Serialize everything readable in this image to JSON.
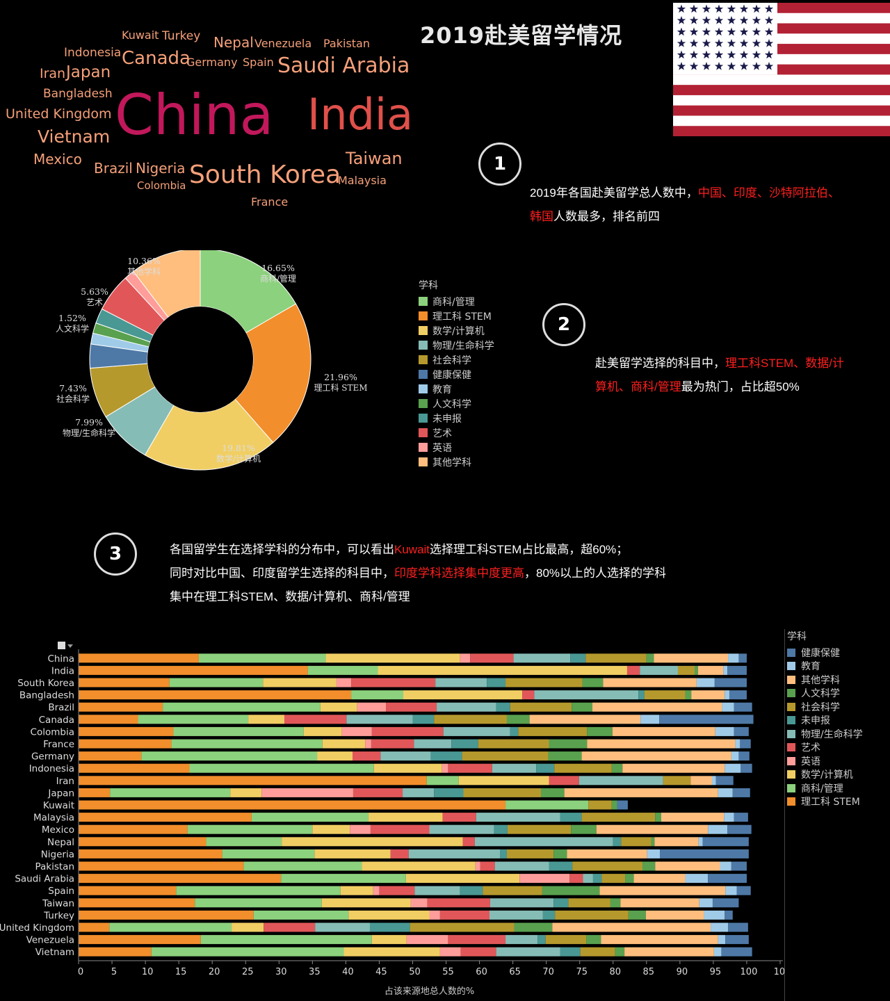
{
  "title": "2019赴美留学情况",
  "colors": {
    "理工科 STEM": "#f28e2b",
    "商科/管理": "#8cd17d",
    "数学/计算机": "#f1ce63",
    "物理/生命科学": "#86bcb6",
    "社会科学": "#b6992d",
    "健康保健": "#4e79a7",
    "教育": "#a0cbe8",
    "人文科学": "#59a14f",
    "未申报": "#499894",
    "艺术": "#e15759",
    "英语": "#ff9d9a",
    "其他学科": "#ffbe7d"
  },
  "notes": [
    {
      "num": "1",
      "lines": [
        [
          {
            "t": "2019年各国赴美留学总人数中，"
          },
          {
            "t": "中国、印度、沙特阿拉伯、",
            "red": true
          }
        ],
        [
          {
            "t": "韩国",
            "red": true
          },
          {
            "t": "人数最多，排名前四"
          }
        ]
      ]
    },
    {
      "num": "2",
      "lines": [
        [
          {
            "t": "赴美留学选择的科目中，"
          },
          {
            "t": "理工科STEM、数据/计",
            "red": true
          }
        ],
        [
          {
            "t": "算机、商科/管理",
            "red": true
          },
          {
            "t": "最为热门，占比超50%"
          }
        ]
      ]
    },
    {
      "num": "3",
      "lines": [
        [
          {
            "t": "各国留学生在选择学科的分布中，可以看出"
          },
          {
            "t": "Kuwait",
            "red": true
          },
          {
            "t": "选择理工科STEM占比最高，超60%；"
          }
        ],
        [
          {
            "t": "同时对比中国、印度留学生选择的科目中，"
          },
          {
            "t": "印度学科选择集中度更高",
            "red": true
          },
          {
            "t": "，80%以上的人选择的学科"
          }
        ],
        [
          {
            "t": "集中在理工科STEM、数据/计算机、商科/管理"
          }
        ]
      ]
    }
  ],
  "chart_data": [
    {
      "type": "wordcloud",
      "words": [
        {
          "text": "China",
          "size": 80,
          "color": "#c2185b"
        },
        {
          "text": "India",
          "size": 62,
          "color": "#e0504a"
        },
        {
          "text": "South Korea",
          "size": 36,
          "color": "#f6a07a"
        },
        {
          "text": "Saudi Arabia",
          "size": 30,
          "color": "#f6a07a"
        },
        {
          "text": "Canada",
          "size": 26,
          "color": "#f6a07a"
        },
        {
          "text": "Vietnam",
          "size": 25,
          "color": "#f6a07a"
        },
        {
          "text": "Taiwan",
          "size": 24,
          "color": "#f6a07a"
        },
        {
          "text": "Japan",
          "size": 23,
          "color": "#f6a07a"
        },
        {
          "text": "Brazil",
          "size": 20,
          "color": "#f6a07a"
        },
        {
          "text": "Nigeria",
          "size": 20,
          "color": "#f6a07a"
        },
        {
          "text": "Mexico",
          "size": 20,
          "color": "#f6a07a"
        },
        {
          "text": "Nepal",
          "size": 20,
          "color": "#f6a07a"
        },
        {
          "text": "United Kingdom",
          "size": 19,
          "color": "#f6a07a"
        },
        {
          "text": "Iran",
          "size": 19,
          "color": "#f6a07a"
        },
        {
          "text": "Bangladesh",
          "size": 17,
          "color": "#f6a07a"
        },
        {
          "text": "Turkey",
          "size": 17,
          "color": "#f6a07a"
        },
        {
          "text": "Indonesia",
          "size": 17,
          "color": "#f6a07a"
        },
        {
          "text": "France",
          "size": 16,
          "color": "#f6a07a"
        },
        {
          "text": "Kuwait",
          "size": 16,
          "color": "#f6a07a"
        },
        {
          "text": "Venezuela",
          "size": 16,
          "color": "#f6a07a"
        },
        {
          "text": "Germany",
          "size": 16,
          "color": "#f6a07a"
        },
        {
          "text": "Spain",
          "size": 16,
          "color": "#f6a07a"
        },
        {
          "text": "Pakistan",
          "size": 16,
          "color": "#f6a07a"
        },
        {
          "text": "Malaysia",
          "size": 16,
          "color": "#f6a07a"
        },
        {
          "text": "Colombia",
          "size": 15,
          "color": "#f6a07a"
        }
      ]
    },
    {
      "type": "pie",
      "legend_title": "学科",
      "legend_placement": "right",
      "slices": [
        {
          "name": "商科/管理",
          "value": 16.65,
          "label": "16.65%"
        },
        {
          "name": "理工科 STEM",
          "value": 21.96,
          "label": "21.96%"
        },
        {
          "name": "数学/计算机",
          "value": 19.81,
          "label": "19.81%"
        },
        {
          "name": "物理/生命科学",
          "value": 7.99,
          "label": "7.99%"
        },
        {
          "name": "社会科学",
          "value": 7.43,
          "label": "7.43%"
        },
        {
          "name": "健康保健",
          "value": 3.5,
          "label": ""
        },
        {
          "name": "教育",
          "value": 1.6,
          "label": ""
        },
        {
          "name": "人文科学",
          "value": 1.52,
          "label": "1.52%"
        },
        {
          "name": "未申报",
          "value": 2.2,
          "label": ""
        },
        {
          "name": "艺术",
          "value": 5.63,
          "label": "5.63%"
        },
        {
          "name": "英语",
          "value": 1.5,
          "label": ""
        },
        {
          "name": "其他学科",
          "value": 10.36,
          "label": "10.36%"
        }
      ]
    },
    {
      "type": "bar",
      "orientation": "horizontal",
      "stacked": true,
      "xlabel": "占该来源地总人数的%",
      "xlim": [
        0,
        105
      ],
      "xticks": [
        0,
        5,
        10,
        15,
        20,
        25,
        30,
        35,
        40,
        45,
        50,
        55,
        60,
        65,
        70,
        75,
        80,
        85,
        90,
        95,
        100,
        105
      ],
      "legend_title": "学科",
      "legend_placement": "right",
      "stack_order": [
        "理工科 STEM",
        "商科/管理",
        "数学/计算机",
        "英语",
        "艺术",
        "物理/生命科学",
        "未申报",
        "社会科学",
        "人文科学",
        "其他学科",
        "教育",
        "健康保健"
      ],
      "legend_order": [
        "健康保健",
        "教育",
        "其他学科",
        "人文科学",
        "社会科学",
        "未申报",
        "物理/生命科学",
        "艺术",
        "英语",
        "数学/计算机",
        "商科/管理",
        "理工科 STEM"
      ],
      "categories": [
        "China",
        "India",
        "South Korea",
        "Bangladesh",
        "Brazil",
        "Canada",
        "Colombia",
        "France",
        "Germany",
        "Indonesia",
        "Iran",
        "Japan",
        "Kuwait",
        "Malaysia",
        "Mexico",
        "Nepal",
        "Nigeria",
        "Pakistan",
        "Saudi Arabia",
        "Spain",
        "Taiwan",
        "Turkey",
        "United Kingdom",
        "Venezuela",
        "Vietnam"
      ],
      "series": [
        {
          "name": "理工科 STEM",
          "values": [
            18.0,
            34.3,
            13.6,
            40.8,
            12.6,
            8.9,
            14.2,
            13.9,
            9.4,
            16.6,
            52.1,
            4.7,
            63.9,
            25.9,
            16.3,
            19.1,
            21.5,
            24.7,
            30.3,
            14.6,
            17.4,
            26.2,
            4.6,
            18.3,
            10.9
          ]
        },
        {
          "name": "商科/管理",
          "values": [
            19.0,
            10.5,
            14.0,
            7.8,
            23.6,
            16.5,
            19.5,
            22.6,
            26.3,
            27.6,
            4.8,
            18.0,
            12.4,
            17.5,
            18.7,
            11.3,
            13.8,
            17.7,
            18.7,
            24.6,
            19.0,
            14.2,
            18.3,
            25.6,
            28.8
          ]
        },
        {
          "name": "数学/计算机",
          "values": [
            20.1,
            37.3,
            11.0,
            17.8,
            5.5,
            5.4,
            5.7,
            6.4,
            5.3,
            10.2,
            13.5,
            4.7,
            0.0,
            11.1,
            5.6,
            27.1,
            11.4,
            17.0,
            17.0,
            4.9,
            13.3,
            12.1,
            4.8,
            5.2,
            14.4
          ]
        },
        {
          "name": "英语",
          "values": [
            1.5,
            0.0,
            2.2,
            0.0,
            4.3,
            0.0,
            4.5,
            0.9,
            0.0,
            0.9,
            0.0,
            13.7,
            0.0,
            0.0,
            3.1,
            0.0,
            0.0,
            0.7,
            7.5,
            0.9,
            2.5,
            1.6,
            0.0,
            6.2,
            3.1
          ]
        },
        {
          "name": "艺术",
          "values": [
            6.5,
            1.9,
            12.6,
            1.8,
            7.6,
            9.3,
            10.7,
            6.4,
            4.2,
            6.6,
            4.5,
            7.4,
            0.0,
            5.0,
            8.8,
            1.8,
            2.7,
            2.2,
            2.0,
            5.3,
            9.4,
            7.4,
            7.7,
            8.6,
            5.3
          ]
        },
        {
          "name": "物理/生命科学",
          "values": [
            8.5,
            5.7,
            7.7,
            15.6,
            8.9,
            9.9,
            10.0,
            5.6,
            7.5,
            6.6,
            12.6,
            4.7,
            0.0,
            12.6,
            9.7,
            20.7,
            13.7,
            8.1,
            1.5,
            6.8,
            9.5,
            8.0,
            8.2,
            4.8,
            9.6
          ]
        },
        {
          "name": "未申报",
          "values": [
            2.3,
            0.0,
            2.8,
            0.9,
            2.1,
            3.2,
            1.2,
            4.0,
            4.7,
            2.7,
            0.0,
            4.4,
            0.0,
            3.2,
            2.0,
            1.2,
            1.0,
            3.5,
            1.3,
            3.4,
            2.2,
            1.8,
            6.0,
            1.2,
            3.0
          ]
        },
        {
          "name": "社会科学",
          "values": [
            9.1,
            2.5,
            11.5,
            6.1,
            9.2,
            10.9,
            10.3,
            10.6,
            12.9,
            8.6,
            4.1,
            11.6,
            3.5,
            11.0,
            9.5,
            4.5,
            7.0,
            10.5,
            3.5,
            8.9,
            6.3,
            11.0,
            15.6,
            6.1,
            5.2
          ]
        },
        {
          "name": "人文科学",
          "values": [
            1.1,
            0.5,
            3.1,
            0.9,
            3.1,
            3.4,
            3.8,
            5.7,
            5.0,
            1.6,
            0.0,
            3.5,
            0.8,
            0.9,
            3.8,
            0.5,
            2.0,
            1.9,
            1.3,
            8.6,
            1.5,
            2.6,
            5.7,
            2.2,
            1.4
          ]
        },
        {
          "name": "其他学科",
          "values": [
            11.1,
            3.8,
            14.0,
            5.0,
            19.4,
            16.6,
            15.4,
            22.2,
            22.4,
            15.3,
            3.2,
            23.0,
            0.0,
            9.4,
            16.7,
            6.6,
            12.0,
            9.7,
            7.7,
            18.8,
            11.8,
            8.7,
            23.7,
            17.5,
            13.4
          ]
        },
        {
          "name": "教育",
          "values": [
            1.6,
            0.6,
            2.7,
            0.7,
            1.8,
            2.8,
            2.8,
            0.7,
            1.1,
            2.4,
            0.6,
            2.2,
            0.0,
            1.5,
            2.9,
            0.6,
            1.9,
            1.7,
            3.4,
            1.7,
            2.0,
            3.1,
            2.6,
            1.1,
            1.1
          ]
        },
        {
          "name": "健康保健",
          "values": [
            1.2,
            2.9,
            4.8,
            2.6,
            2.7,
            14.1,
            2.2,
            1.6,
            1.6,
            1.7,
            2.6,
            2.6,
            1.6,
            2.1,
            3.6,
            6.9,
            13.3,
            2.3,
            5.8,
            2.1,
            3.9,
            1.2,
            3.0,
            3.5,
            4.6
          ]
        }
      ]
    }
  ]
}
